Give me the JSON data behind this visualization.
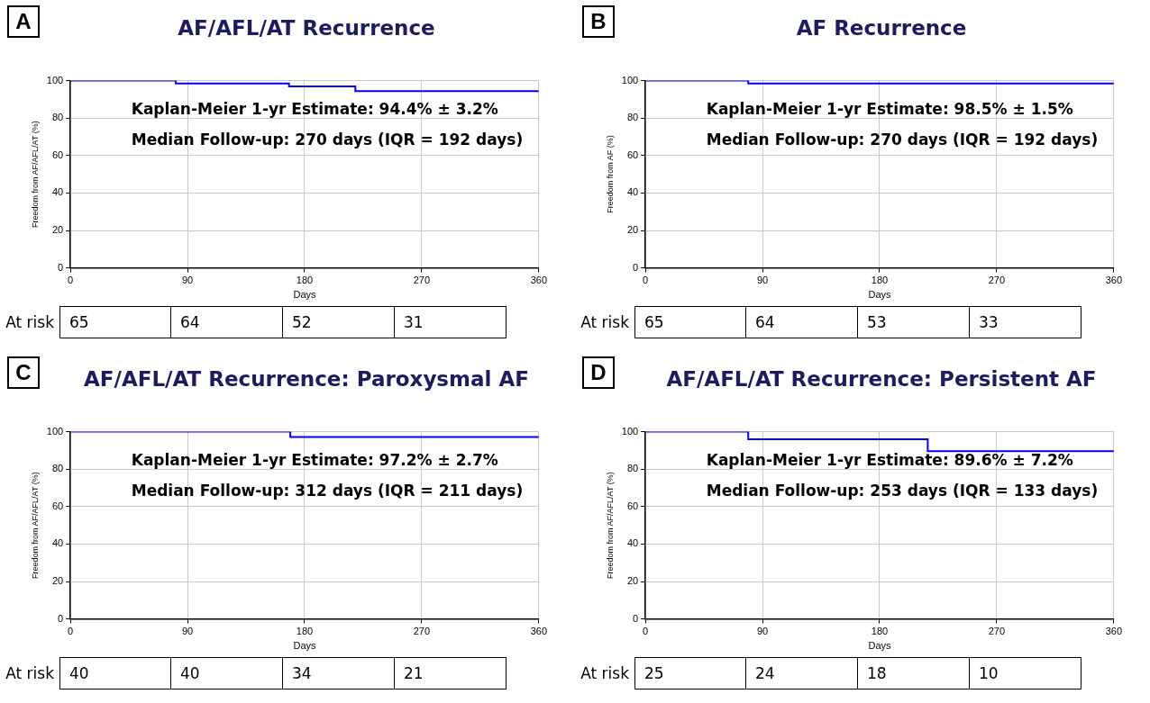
{
  "chart_data": [
    {
      "type": "step",
      "title": "AF/AFL/AT Recurrence",
      "xlabel": "Days",
      "ylabel": "Freedom from AF/AFL/AT (%)",
      "x": [
        0,
        81,
        168,
        219,
        360
      ],
      "series": [
        {
          "color": "#0000ff",
          "values": [
            100,
            98.5,
            96.9,
            94.4,
            94.4
          ]
        }
      ],
      "xlim": [
        0,
        360
      ],
      "xticks": [
        0,
        90,
        180,
        270,
        360
      ],
      "ylim": [
        0,
        100
      ],
      "yticks": [
        0,
        20,
        40,
        60,
        80,
        100
      ],
      "grid": true,
      "annotations": [
        "A",
        "Kaplan-Meier 1-yr Estimate: 94.4% ± 3.2%",
        "Median Follow-up: 270 days (IQR = 192 days)",
        "At risk",
        "65",
        "64",
        "52",
        "31"
      ]
    },
    {
      "type": "step",
      "title": "AF Recurrence",
      "xlabel": "Days",
      "ylabel": "Freedom from AF (%)",
      "x": [
        0,
        79,
        360
      ],
      "series": [
        {
          "color": "#0000ff",
          "values": [
            100,
            98.5,
            98.5
          ]
        }
      ],
      "xlim": [
        0,
        360
      ],
      "xticks": [
        0,
        90,
        180,
        270,
        360
      ],
      "ylim": [
        0,
        100
      ],
      "yticks": [
        0,
        20,
        40,
        60,
        80,
        100
      ],
      "grid": true,
      "annotations": [
        "B",
        "Kaplan-Meier 1-yr Estimate: 98.5% ± 1.5%",
        "Median Follow-up: 270 days (IQR = 192 days)",
        "At risk",
        "65",
        "64",
        "53",
        "33"
      ]
    },
    {
      "type": "step",
      "title": "AF/AFL/AT Recurrence: Paroxysmal AF",
      "xlabel": "Days",
      "ylabel": "Freedom from AF/AFL/AT (%)",
      "x": [
        0,
        169,
        360
      ],
      "series": [
        {
          "color": "#0000ff",
          "values": [
            100,
            97.2,
            97.2
          ]
        }
      ],
      "xlim": [
        0,
        360
      ],
      "xticks": [
        0,
        90,
        180,
        270,
        360
      ],
      "ylim": [
        0,
        100
      ],
      "yticks": [
        0,
        20,
        40,
        60,
        80,
        100
      ],
      "grid": true,
      "annotations": [
        "C",
        "Kaplan-Meier 1-yr Estimate: 97.2% ± 2.7%",
        "Median Follow-up: 312 days (IQR = 211 days)",
        "At risk",
        "40",
        "40",
        "34",
        "21"
      ]
    },
    {
      "type": "step",
      "title": "AF/AFL/AT Recurrence: Persistent AF",
      "xlabel": "Days",
      "ylabel": "Freedom from AF/AFL/AT (%)",
      "x": [
        0,
        79,
        217,
        360
      ],
      "series": [
        {
          "color": "#0000ff",
          "values": [
            100,
            96,
            89.6,
            89.6
          ]
        }
      ],
      "xlim": [
        0,
        360
      ],
      "xticks": [
        0,
        90,
        180,
        270,
        360
      ],
      "ylim": [
        0,
        100
      ],
      "yticks": [
        0,
        20,
        40,
        60,
        80,
        100
      ],
      "grid": true,
      "annotations": [
        "D",
        "Kaplan-Meier 1-yr Estimate: 89.6% ± 7.2%",
        "Median Follow-up: 253 days (IQR = 133 days)",
        "At risk",
        "25",
        "24",
        "18",
        "10"
      ]
    }
  ]
}
